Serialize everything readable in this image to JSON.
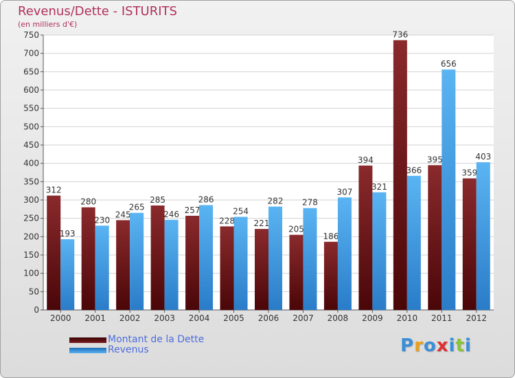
{
  "chart_data": {
    "type": "bar",
    "title": "Revenus/Dette - ISTURITS",
    "subtitle": "(en milliers d'€)",
    "categories": [
      "2000",
      "2001",
      "2002",
      "2003",
      "2004",
      "2005",
      "2006",
      "2007",
      "2008",
      "2009",
      "2010",
      "2011",
      "2012"
    ],
    "series": [
      {
        "name": "Montant de la Dette",
        "color": "#7a1a1c",
        "values": [
          312,
          280,
          245,
          285,
          257,
          228,
          221,
          205,
          186,
          394,
          736,
          395,
          359
        ]
      },
      {
        "name": "Revenus",
        "color": "#4aa3e8",
        "values": [
          193,
          230,
          265,
          246,
          286,
          254,
          282,
          278,
          307,
          321,
          366,
          656,
          403
        ]
      }
    ],
    "ylim": [
      0,
      750
    ],
    "ytick_step": 50,
    "grid": true,
    "legend_position": "bottom-left"
  },
  "branding": {
    "logo_letters": [
      "P",
      "r",
      "o",
      "x",
      "i",
      "t",
      "i"
    ],
    "logo_colors": [
      "#3a8fd8",
      "#e8a020",
      "#3a8fd8",
      "#e03030",
      "#3a8fd8",
      "#8ac43a",
      "#3a8fd8"
    ]
  }
}
